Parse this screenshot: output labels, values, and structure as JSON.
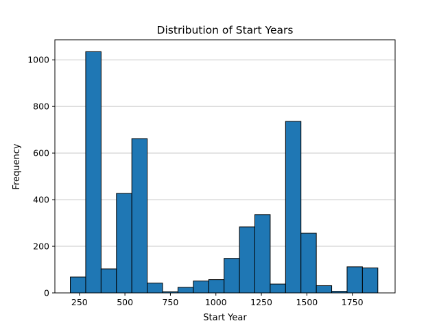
{
  "chart_data": {
    "type": "bar",
    "title": "Distribution of Start Years",
    "xlabel": "Start Year",
    "ylabel": "Frequency",
    "bins": {
      "start": 200,
      "width": 84.5
    },
    "values": [
      68,
      1035,
      103,
      427,
      662,
      42,
      5,
      24,
      51,
      57,
      148,
      283,
      336,
      38,
      736,
      256,
      31,
      7,
      112,
      107
    ],
    "xlim": [
      115,
      1985
    ],
    "ylim": [
      0,
      1086
    ],
    "xticks": [
      250,
      500,
      750,
      1000,
      1250,
      1500,
      1750
    ],
    "yticks": [
      0,
      200,
      400,
      600,
      800,
      1000
    ],
    "grid": "y",
    "bar_color": "#1f77b4",
    "edge_color": "#000000",
    "grid_color": "#c8c8c8"
  }
}
